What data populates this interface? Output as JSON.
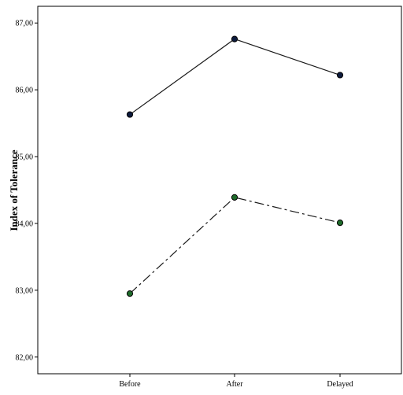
{
  "chart_data": {
    "type": "line",
    "title": "",
    "xlabel": "",
    "ylabel": "Index of Tolerance",
    "categories": [
      "Before",
      "After",
      "Delayed"
    ],
    "ylim": [
      81.75,
      87.25
    ],
    "yticks": [
      "82,00",
      "83,00",
      "84,00",
      "85,00",
      "86,00",
      "87,00"
    ],
    "grid": false,
    "legend": "none",
    "series": [
      {
        "values": [
          85.63,
          86.76,
          86.22
        ],
        "line_style": "solid",
        "line_color": "#1a1a1a",
        "marker_fill": "#0d1b3e",
        "marker_stroke": "#000000"
      },
      {
        "values": [
          82.95,
          84.39,
          84.01
        ],
        "line_style": "dash-dot",
        "line_color": "#1a1a1a",
        "marker_fill": "#1e6b2a",
        "marker_stroke": "#000000"
      }
    ]
  }
}
